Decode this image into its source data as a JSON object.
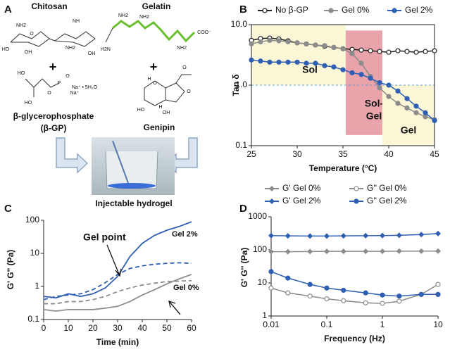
{
  "panel_a": {
    "panel_label": "A",
    "chitosan": {
      "name": "Chitosan",
      "labels": [
        "NH2",
        "HO",
        "O",
        "OH",
        "NH",
        "NH2",
        "OH"
      ]
    },
    "gelatin": {
      "name": "Gelatin",
      "labels": [
        "NH2",
        "NH2",
        "NH2",
        "H2N",
        "COO⁻"
      ]
    },
    "plus_left": "+",
    "plus_right": "+",
    "glycerophosphate": {
      "name": "β-glycerophosphate",
      "abbr": "(β-GP)",
      "labels": [
        "HO",
        "HO",
        "O",
        "P",
        "O",
        "Na⁺ • 5H₂O",
        "Na⁺"
      ]
    },
    "genipin": {
      "name": "Genipin",
      "labels": [
        "O",
        "O",
        "H",
        "H",
        "OH",
        "HO",
        "O"
      ]
    },
    "product": "Injectable hydrogel"
  },
  "chart_data": [
    {
      "type": "line",
      "panel_label": "B",
      "x_label": "Temperature (°C)",
      "y_label": "Tan δ",
      "y_scale": "log",
      "frame": true,
      "legend": "top",
      "xlim": [
        25,
        45
      ],
      "xticks": [
        25,
        30,
        35,
        40,
        45
      ],
      "ylim": [
        0.1,
        10
      ],
      "yticks": [
        0.1,
        {
          "value": 1,
          "label": "1.0"
        },
        {
          "value": 10,
          "label": "10.0"
        }
      ],
      "regions": [
        {
          "label_lines": [
            "Sol"
          ],
          "xlim": [
            25,
            35.3
          ],
          "ylim": [
            1,
            10
          ],
          "color": "#fbf6d6"
        },
        {
          "label_lines": [
            "Sol-",
            "Gel"
          ],
          "xlim": [
            35.3,
            39.3
          ],
          "ylim": [
            0.15,
            8
          ],
          "color": "#e8a3ab"
        },
        {
          "label_lines": [
            "Gel"
          ],
          "xlim": [
            39.3,
            45
          ],
          "ylim": [
            0.1,
            1
          ],
          "color": "#fbf6d6"
        }
      ],
      "reference_line": {
        "y": 1,
        "color": "#5b9bd5"
      },
      "x": [
        25,
        26,
        27,
        28,
        29,
        30,
        31,
        32,
        33,
        34,
        35,
        36,
        37,
        38,
        39,
        40,
        41,
        42,
        43,
        44,
        45
      ],
      "series": [
        {
          "name": "No β-GP",
          "color": "#222222",
          "marker": "open-circle",
          "values": [
            5.5,
            5.9,
            6.0,
            5.8,
            5.4,
            5.0,
            4.8,
            4.6,
            4.4,
            4.2,
            4.0,
            3.9,
            3.8,
            3.7,
            3.6,
            3.5,
            3.7,
            3.6,
            3.5,
            3.6,
            3.7
          ]
        },
        {
          "name": "Gel 0%",
          "color": "#8c8c8c",
          "marker": "circle",
          "values": [
            4.8,
            5.2,
            5.5,
            5.4,
            5.2,
            5.0,
            4.8,
            4.6,
            4.5,
            4.2,
            4.0,
            3.3,
            2.3,
            1.4,
            0.9,
            0.65,
            0.5,
            0.42,
            0.35,
            0.3,
            0.27
          ]
        },
        {
          "name": "Gel 2%",
          "color": "#2f5fb3",
          "marker": "circle",
          "values": [
            2.6,
            2.5,
            2.4,
            2.4,
            2.4,
            2.4,
            2.3,
            2.3,
            2.1,
            2.0,
            1.8,
            1.6,
            1.5,
            1.3,
            1.1,
            1.0,
            0.8,
            0.6,
            0.45,
            0.35,
            0.26
          ]
        }
      ]
    },
    {
      "type": "line",
      "panel_label": "C",
      "x_label": "Time (min)",
      "y_label": "G' G'' (Pa)",
      "y_scale": "log",
      "frame": false,
      "xlim": [
        0,
        60
      ],
      "xticks": [
        0,
        10,
        20,
        30,
        40,
        50,
        60
      ],
      "ylim": [
        0.1,
        100
      ],
      "yticks": [
        0.1,
        1,
        10,
        100
      ],
      "annotations": [
        "Gel point",
        "Gel 2%",
        "Gel 0%"
      ],
      "x": [
        0,
        5,
        10,
        15,
        20,
        25,
        30,
        35,
        40,
        45,
        50,
        55,
        60
      ],
      "series": [
        {
          "color": "#2f5fb3",
          "style": "solid",
          "marker": "none",
          "values": [
            0.5,
            0.45,
            0.6,
            0.5,
            0.6,
            0.9,
            2.0,
            8.0,
            20,
            35,
            50,
            65,
            90
          ]
        },
        {
          "color": "#2f5fb3",
          "style": "dashed",
          "marker": "none",
          "values": [
            0.4,
            0.5,
            0.55,
            0.6,
            0.8,
            1.3,
            2.3,
            3.5,
            4.2,
            4.7,
            5.0,
            5.2,
            5.0
          ]
        },
        {
          "color": "#8c8c8c",
          "style": "solid",
          "marker": "none",
          "values": [
            0.2,
            0.18,
            0.2,
            0.2,
            0.2,
            0.22,
            0.25,
            0.35,
            0.55,
            0.8,
            1.2,
            1.7,
            2.3
          ]
        },
        {
          "color": "#8c8c8c",
          "style": "dashed",
          "marker": "none",
          "values": [
            0.3,
            0.3,
            0.35,
            0.35,
            0.4,
            0.5,
            0.7,
            0.9,
            1.1,
            1.25,
            1.4,
            1.45,
            1.5
          ]
        }
      ]
    },
    {
      "type": "line",
      "panel_label": "D",
      "x_label": "Frequency (Hz)",
      "y_label": "G' G'' (Pa)",
      "x_scale": "log",
      "y_scale": "log",
      "frame": false,
      "legend": "top",
      "xlim": [
        0.01,
        10
      ],
      "xticks": [
        0.01,
        0.1,
        1,
        10
      ],
      "ylim": [
        1,
        1000
      ],
      "yticks": [
        1,
        10,
        100,
        1000
      ],
      "x": [
        0.01,
        0.02,
        0.05,
        0.1,
        0.2,
        0.5,
        1,
        2,
        5,
        10
      ],
      "series": [
        {
          "name": "G' Gel 0%",
          "color": "#8c8c8c",
          "marker": "diamond",
          "values": [
            88,
            88,
            89,
            90,
            90,
            90,
            90,
            91,
            91,
            92
          ]
        },
        {
          "name": "G'' Gel 0%",
          "color": "#8c8c8c",
          "marker": "open-circle",
          "values": [
            7,
            5,
            4,
            3.3,
            2.9,
            2.5,
            2.4,
            2.8,
            4.5,
            9
          ]
        },
        {
          "name": "G' Gel 2%",
          "color": "#2f5fb3",
          "marker": "diamond",
          "values": [
            270,
            265,
            262,
            262,
            265,
            268,
            270,
            275,
            290,
            310
          ]
        },
        {
          "name": "G'' Gel 2%",
          "color": "#2f5fb3",
          "marker": "circle",
          "values": [
            22,
            14,
            9,
            7,
            6,
            5,
            4.3,
            4,
            4.5,
            4.5
          ]
        }
      ]
    }
  ]
}
